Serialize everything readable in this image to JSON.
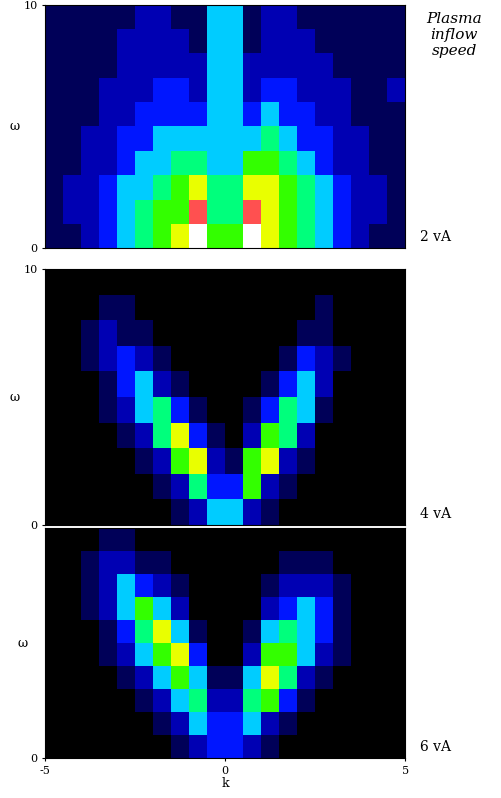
{
  "title": "Plasma inflow speed",
  "chart_data": [
    {
      "type": "heatmap",
      "label": "2 vA",
      "ylabel": "ω",
      "xlim": [
        -5,
        5
      ],
      "ylim": [
        0,
        10
      ],
      "xticks": [],
      "yticks": [
        0,
        10
      ],
      "value_range": [
        0,
        10
      ],
      "cells": [
        [
          1,
          1,
          2,
          3,
          4,
          5,
          6,
          7,
          10,
          6,
          6,
          10,
          7,
          6,
          5,
          4,
          3,
          2,
          1,
          1
        ],
        [
          1,
          2,
          2,
          3,
          4,
          5,
          6,
          6,
          9,
          5,
          5,
          9,
          7,
          6,
          5,
          4,
          3,
          2,
          2,
          1
        ],
        [
          1,
          2,
          2,
          3,
          4,
          4,
          5,
          6,
          7,
          5,
          5,
          7,
          7,
          6,
          5,
          4,
          3,
          2,
          2,
          1
        ],
        [
          1,
          1,
          2,
          2,
          3,
          4,
          4,
          5,
          5,
          4,
          4,
          6,
          6,
          5,
          4,
          3,
          2,
          2,
          1,
          1
        ],
        [
          1,
          1,
          2,
          2,
          3,
          3,
          4,
          4,
          4,
          4,
          4,
          4,
          5,
          4,
          3,
          3,
          2,
          2,
          1,
          1
        ],
        [
          1,
          1,
          1,
          2,
          2,
          3,
          3,
          3,
          3,
          4,
          4,
          3,
          4,
          3,
          3,
          2,
          2,
          1,
          1,
          1
        ],
        [
          1,
          1,
          1,
          2,
          2,
          2,
          3,
          3,
          2,
          4,
          4,
          2,
          3,
          3,
          2,
          2,
          2,
          1,
          1,
          2
        ],
        [
          1,
          1,
          1,
          1,
          2,
          2,
          2,
          2,
          2,
          4,
          4,
          2,
          2,
          2,
          2,
          2,
          1,
          1,
          1,
          1
        ],
        [
          1,
          1,
          1,
          1,
          2,
          2,
          2,
          2,
          1,
          4,
          4,
          1,
          2,
          2,
          2,
          1,
          1,
          1,
          1,
          1
        ],
        [
          1,
          1,
          1,
          1,
          1,
          2,
          2,
          1,
          1,
          4,
          4,
          1,
          2,
          2,
          1,
          1,
          1,
          1,
          1,
          1
        ]
      ]
    },
    {
      "type": "heatmap",
      "label": "4 vA",
      "ylabel": "ω",
      "xlim": [
        -5,
        5
      ],
      "ylim": [
        0,
        10
      ],
      "xticks": [],
      "yticks": [
        0,
        10
      ],
      "value_range": [
        0,
        10
      ],
      "cells": [
        [
          0,
          0,
          0,
          0,
          0,
          0,
          0,
          1,
          2,
          4,
          4,
          2,
          1,
          0,
          0,
          0,
          0,
          0,
          0,
          0
        ],
        [
          0,
          0,
          0,
          0,
          0,
          0,
          1,
          2,
          5,
          3,
          3,
          6,
          2,
          1,
          0,
          0,
          0,
          0,
          0,
          0
        ],
        [
          0,
          0,
          0,
          0,
          0,
          1,
          2,
          6,
          7,
          2,
          1,
          6,
          7,
          2,
          1,
          0,
          0,
          0,
          0,
          0
        ],
        [
          0,
          0,
          0,
          0,
          1,
          2,
          5,
          7,
          3,
          1,
          0,
          2,
          6,
          5,
          2,
          0,
          0,
          0,
          0,
          0
        ],
        [
          0,
          0,
          0,
          1,
          2,
          4,
          5,
          3,
          1,
          0,
          0,
          1,
          3,
          5,
          4,
          1,
          0,
          0,
          0,
          0
        ],
        [
          0,
          0,
          0,
          1,
          3,
          4,
          2,
          1,
          0,
          0,
          0,
          0,
          1,
          3,
          4,
          2,
          0,
          0,
          0,
          0
        ],
        [
          0,
          0,
          1,
          2,
          3,
          2,
          1,
          0,
          0,
          0,
          0,
          0,
          0,
          1,
          3,
          2,
          1,
          0,
          0,
          0
        ],
        [
          0,
          0,
          1,
          2,
          1,
          1,
          0,
          0,
          0,
          0,
          0,
          0,
          0,
          0,
          1,
          1,
          0,
          0,
          0,
          0
        ],
        [
          0,
          0,
          0,
          1,
          1,
          0,
          0,
          0,
          0,
          0,
          0,
          0,
          0,
          0,
          0,
          1,
          0,
          0,
          0,
          0
        ],
        [
          0,
          0,
          0,
          0,
          0,
          0,
          0,
          0,
          0,
          0,
          0,
          0,
          0,
          0,
          0,
          0,
          0,
          0,
          0,
          0
        ]
      ]
    },
    {
      "type": "heatmap",
      "label": "6 vA",
      "ylabel": "ω",
      "xlabel": "k",
      "xlim": [
        -5,
        5
      ],
      "ylim": [
        0,
        10
      ],
      "xticks": [
        -5,
        0,
        5
      ],
      "yticks": [
        0
      ],
      "value_range": [
        0,
        10
      ],
      "cells": [
        [
          0,
          0,
          0,
          0,
          0,
          0,
          0,
          1,
          2,
          3,
          3,
          2,
          1,
          0,
          0,
          0,
          0,
          0,
          0,
          0
        ],
        [
          0,
          0,
          0,
          0,
          0,
          0,
          1,
          2,
          4,
          3,
          3,
          4,
          2,
          1,
          0,
          0,
          0,
          0,
          0,
          0
        ],
        [
          0,
          0,
          0,
          0,
          0,
          1,
          2,
          4,
          5,
          2,
          2,
          5,
          6,
          3,
          1,
          0,
          0,
          0,
          0,
          0
        ],
        [
          0,
          0,
          0,
          0,
          1,
          2,
          4,
          6,
          4,
          1,
          1,
          4,
          7,
          5,
          2,
          1,
          0,
          0,
          0,
          0
        ],
        [
          0,
          0,
          0,
          1,
          2,
          4,
          6,
          7,
          3,
          0,
          0,
          2,
          6,
          6,
          4,
          2,
          1,
          0,
          0,
          0
        ],
        [
          0,
          0,
          0,
          1,
          3,
          5,
          7,
          4,
          1,
          0,
          0,
          1,
          4,
          5,
          4,
          3,
          1,
          0,
          0,
          0
        ],
        [
          0,
          0,
          1,
          2,
          4,
          6,
          4,
          2,
          0,
          0,
          0,
          0,
          2,
          3,
          4,
          3,
          1,
          0,
          0,
          0
        ],
        [
          0,
          0,
          1,
          2,
          4,
          3,
          2,
          1,
          0,
          0,
          0,
          0,
          1,
          2,
          2,
          2,
          1,
          0,
          0,
          0
        ],
        [
          0,
          0,
          1,
          2,
          2,
          1,
          1,
          0,
          0,
          0,
          0,
          0,
          0,
          1,
          1,
          1,
          0,
          0,
          0,
          0
        ],
        [
          0,
          0,
          0,
          1,
          1,
          0,
          0,
          0,
          0,
          0,
          0,
          0,
          0,
          0,
          0,
          0,
          0,
          0,
          0,
          0
        ]
      ]
    }
  ]
}
